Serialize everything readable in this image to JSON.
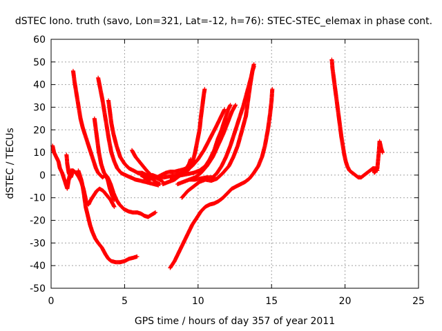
{
  "chart_data": {
    "type": "scatter",
    "title": "dSTEC Iono. truth (savo, Lon=321, Lat=-12, h=76): STEC-STEC_elemax in phase cont.",
    "xlabel": "GPS time / hours of day 357 of year 2011",
    "ylabel": "dSTEC  / TECUs",
    "xlim": [
      0,
      25
    ],
    "ylim": [
      -50,
      60
    ],
    "xticks": [
      0,
      5,
      10,
      15,
      20,
      25
    ],
    "yticks": [
      -50,
      -40,
      -30,
      -20,
      -10,
      0,
      10,
      20,
      30,
      40,
      50,
      60
    ],
    "xtick_labels": [
      "0",
      "5",
      "10",
      "15",
      "20",
      "25"
    ],
    "ytick_labels": [
      "-50",
      "-40",
      "-30",
      "-20",
      "-10",
      "0",
      "10",
      "20",
      "30",
      "40",
      "50",
      "60"
    ],
    "grid": true,
    "marker": "+",
    "marker_color": "#ff0000",
    "series": [
      {
        "points": [
          [
            0.1,
            13
          ],
          [
            0.2,
            10
          ],
          [
            0.35,
            8
          ],
          [
            0.5,
            6
          ],
          [
            0.6,
            3
          ],
          [
            0.75,
            1
          ],
          [
            0.9,
            -2
          ],
          [
            1.0,
            -4
          ],
          [
            1.1,
            -6
          ],
          [
            1.2,
            -2
          ],
          [
            1.35,
            2
          ],
          [
            1.5,
            2
          ]
        ]
      },
      {
        "points": [
          [
            1.05,
            9
          ],
          [
            1.1,
            5
          ],
          [
            1.2,
            1
          ],
          [
            1.35,
            -1
          ],
          [
            1.5,
            2
          ],
          [
            1.7,
            1
          ],
          [
            1.9,
            -1
          ],
          [
            2.05,
            -3
          ],
          [
            2.2,
            -6
          ],
          [
            2.3,
            -9
          ],
          [
            2.4,
            -12
          ],
          [
            2.55,
            -13
          ],
          [
            2.7,
            -11
          ],
          [
            2.9,
            -9
          ],
          [
            3.1,
            -7
          ],
          [
            3.3,
            -6
          ],
          [
            3.55,
            -7
          ],
          [
            3.8,
            -9
          ],
          [
            4.05,
            -11
          ],
          [
            4.3,
            -14
          ]
        ]
      },
      {
        "points": [
          [
            1.5,
            46
          ],
          [
            1.6,
            41
          ],
          [
            1.75,
            35
          ],
          [
            1.9,
            29
          ],
          [
            2.0,
            25
          ],
          [
            2.15,
            21
          ],
          [
            2.3,
            18
          ],
          [
            2.45,
            15
          ],
          [
            2.6,
            12
          ],
          [
            2.75,
            9
          ],
          [
            2.9,
            6
          ],
          [
            3.05,
            3
          ],
          [
            3.2,
            1
          ],
          [
            3.35,
            0
          ],
          [
            3.5,
            -1
          ],
          [
            3.7,
            0
          ],
          [
            3.85,
            -2
          ],
          [
            4.0,
            -6
          ],
          [
            4.15,
            -9
          ],
          [
            4.3,
            -11
          ]
        ]
      },
      {
        "points": [
          [
            1.85,
            2
          ],
          [
            1.95,
            0
          ],
          [
            2.05,
            -2
          ],
          [
            2.15,
            -5
          ],
          [
            2.25,
            -9
          ],
          [
            2.35,
            -14
          ],
          [
            2.5,
            -18
          ],
          [
            2.65,
            -22
          ],
          [
            2.8,
            -25
          ],
          [
            3.0,
            -28
          ],
          [
            3.2,
            -30
          ],
          [
            3.45,
            -32
          ],
          [
            3.7,
            -35
          ],
          [
            3.9,
            -37
          ],
          [
            4.1,
            -38
          ],
          [
            4.4,
            -38.5
          ],
          [
            4.7,
            -38.5
          ],
          [
            5.0,
            -38
          ],
          [
            5.3,
            -37
          ],
          [
            5.6,
            -36.5
          ],
          [
            5.85,
            -36
          ]
        ]
      },
      {
        "points": [
          [
            3.2,
            43
          ],
          [
            3.35,
            38
          ],
          [
            3.5,
            33
          ],
          [
            3.65,
            27
          ],
          [
            3.8,
            21
          ],
          [
            3.95,
            15
          ],
          [
            4.1,
            10
          ],
          [
            4.3,
            6
          ],
          [
            4.5,
            3
          ],
          [
            4.75,
            1
          ],
          [
            5.05,
            0
          ],
          [
            5.4,
            -1
          ],
          [
            5.75,
            -2
          ],
          [
            6.1,
            -2.5
          ],
          [
            6.4,
            -3
          ],
          [
            6.7,
            -3.5
          ],
          [
            7.0,
            -4
          ],
          [
            7.3,
            -4.5
          ]
        ]
      },
      {
        "points": [
          [
            3.9,
            33
          ],
          [
            4.0,
            28
          ],
          [
            4.1,
            23
          ],
          [
            4.25,
            18
          ],
          [
            4.45,
            13
          ],
          [
            4.7,
            8
          ],
          [
            5.0,
            5
          ],
          [
            5.3,
            3
          ],
          [
            5.6,
            2
          ],
          [
            5.9,
            1
          ],
          [
            6.2,
            1
          ],
          [
            6.5,
            0
          ],
          [
            6.8,
            -1
          ],
          [
            7.1,
            -3
          ],
          [
            7.4,
            -4
          ]
        ]
      },
      {
        "points": [
          [
            2.95,
            25
          ],
          [
            3.05,
            20
          ],
          [
            3.15,
            15
          ],
          [
            3.25,
            10
          ],
          [
            3.4,
            5
          ],
          [
            3.6,
            1
          ],
          [
            3.85,
            -1
          ],
          [
            4.05,
            -4
          ],
          [
            4.25,
            -8
          ],
          [
            4.45,
            -11
          ],
          [
            4.65,
            -13
          ],
          [
            4.95,
            -15
          ],
          [
            5.25,
            -16
          ],
          [
            5.55,
            -16.5
          ],
          [
            5.85,
            -16.5
          ],
          [
            6.1,
            -17
          ],
          [
            6.35,
            -18
          ],
          [
            6.6,
            -18.5
          ],
          [
            6.85,
            -17.5
          ],
          [
            7.1,
            -16.5
          ]
        ]
      },
      {
        "points": [
          [
            5.5,
            11
          ],
          [
            5.75,
            8
          ],
          [
            6.0,
            6
          ],
          [
            6.25,
            4
          ],
          [
            6.5,
            2
          ],
          [
            6.8,
            0
          ],
          [
            7.1,
            -1
          ],
          [
            7.4,
            -2
          ],
          [
            7.6,
            -3
          ]
        ]
      },
      {
        "points": [
          [
            6.3,
            -1
          ],
          [
            6.6,
            -2
          ],
          [
            6.9,
            -1.5
          ],
          [
            7.2,
            -1
          ],
          [
            7.5,
            0
          ],
          [
            7.8,
            1
          ],
          [
            8.1,
            1.5
          ],
          [
            8.4,
            1.5
          ],
          [
            8.7,
            2
          ],
          [
            9.0,
            2.5
          ],
          [
            9.2,
            3
          ],
          [
            9.4,
            5
          ],
          [
            9.5,
            7
          ]
        ]
      },
      {
        "points": [
          [
            6.1,
            0
          ],
          [
            6.5,
            -0.5
          ],
          [
            6.9,
            0
          ],
          [
            7.3,
            -1
          ],
          [
            7.7,
            -1
          ],
          [
            8.1,
            -0.5
          ],
          [
            8.5,
            0
          ],
          [
            8.9,
            1
          ],
          [
            9.3,
            2
          ],
          [
            9.6,
            5
          ],
          [
            9.8,
            10
          ],
          [
            9.95,
            15
          ],
          [
            10.1,
            20
          ],
          [
            10.2,
            26
          ],
          [
            10.3,
            31
          ],
          [
            10.4,
            36
          ],
          [
            10.45,
            38
          ]
        ]
      },
      {
        "points": [
          [
            8.1,
            -1
          ],
          [
            8.5,
            -0.5
          ],
          [
            8.9,
            0
          ],
          [
            9.3,
            0.5
          ],
          [
            9.7,
            1
          ],
          [
            10.1,
            2
          ],
          [
            10.5,
            4
          ],
          [
            10.8,
            7
          ],
          [
            11.1,
            11
          ],
          [
            11.35,
            16
          ],
          [
            11.6,
            20
          ],
          [
            11.85,
            25
          ],
          [
            12.05,
            29
          ],
          [
            12.2,
            31
          ]
        ]
      },
      {
        "points": [
          [
            8.6,
            -4
          ],
          [
            9.0,
            -3
          ],
          [
            9.4,
            -2
          ],
          [
            9.8,
            -1
          ],
          [
            10.2,
            1
          ],
          [
            10.6,
            4
          ],
          [
            11.0,
            8
          ],
          [
            11.35,
            13
          ],
          [
            11.7,
            18
          ],
          [
            12.0,
            23
          ],
          [
            12.3,
            28
          ],
          [
            12.55,
            31
          ]
        ]
      },
      {
        "points": [
          [
            7.6,
            -4
          ],
          [
            8.0,
            -3
          ],
          [
            8.4,
            -2
          ],
          [
            8.8,
            0
          ],
          [
            9.2,
            2
          ],
          [
            9.6,
            4
          ],
          [
            10.0,
            7
          ],
          [
            10.4,
            11
          ],
          [
            10.8,
            16
          ],
          [
            11.2,
            21
          ],
          [
            11.5,
            25
          ],
          [
            11.8,
            29
          ]
        ]
      },
      {
        "points": [
          [
            9.4,
            -2
          ],
          [
            9.8,
            -2
          ],
          [
            10.2,
            -1.5
          ],
          [
            10.6,
            -1
          ],
          [
            11.0,
            -1
          ],
          [
            11.3,
            1
          ],
          [
            11.6,
            4
          ],
          [
            11.9,
            8
          ],
          [
            12.2,
            13
          ],
          [
            12.5,
            19
          ],
          [
            12.8,
            25
          ],
          [
            13.1,
            31
          ],
          [
            13.35,
            37
          ],
          [
            13.6,
            43
          ],
          [
            13.8,
            49
          ]
        ]
      },
      {
        "points": [
          [
            8.9,
            -10
          ],
          [
            9.3,
            -7
          ],
          [
            9.7,
            -5
          ],
          [
            10.1,
            -3
          ],
          [
            10.5,
            -2
          ],
          [
            10.9,
            -2.5
          ],
          [
            11.3,
            -1.5
          ],
          [
            11.7,
            1
          ],
          [
            12.1,
            4
          ],
          [
            12.4,
            8
          ],
          [
            12.7,
            13
          ],
          [
            13.0,
            20
          ],
          [
            13.25,
            26
          ],
          [
            13.4,
            33
          ],
          [
            13.55,
            40
          ],
          [
            13.7,
            46
          ],
          [
            13.8,
            48
          ]
        ]
      },
      {
        "points": [
          [
            8.1,
            -41
          ],
          [
            8.4,
            -38
          ],
          [
            8.7,
            -34
          ],
          [
            9.0,
            -30
          ],
          [
            9.3,
            -26
          ],
          [
            9.6,
            -22
          ],
          [
            9.9,
            -19
          ],
          [
            10.2,
            -16
          ],
          [
            10.5,
            -14
          ],
          [
            10.8,
            -13
          ],
          [
            11.1,
            -12.5
          ],
          [
            11.4,
            -11.5
          ],
          [
            11.7,
            -10
          ],
          [
            12.0,
            -8
          ],
          [
            12.3,
            -6
          ],
          [
            12.6,
            -5
          ],
          [
            12.9,
            -4
          ],
          [
            13.2,
            -3
          ],
          [
            13.5,
            -1.5
          ],
          [
            13.8,
            1
          ],
          [
            14.1,
            4
          ],
          [
            14.35,
            8
          ],
          [
            14.55,
            13
          ],
          [
            14.75,
            20
          ],
          [
            14.9,
            27
          ],
          [
            15.0,
            33
          ],
          [
            15.05,
            38
          ]
        ]
      },
      {
        "points": [
          [
            19.1,
            51
          ],
          [
            19.15,
            47
          ],
          [
            19.25,
            42
          ],
          [
            19.35,
            37
          ],
          [
            19.45,
            32
          ],
          [
            19.55,
            27
          ],
          [
            19.65,
            22
          ],
          [
            19.75,
            17
          ],
          [
            19.85,
            13
          ],
          [
            19.95,
            9
          ],
          [
            20.05,
            6
          ],
          [
            20.15,
            4
          ],
          [
            20.3,
            2
          ],
          [
            20.5,
            1
          ],
          [
            20.7,
            0
          ],
          [
            20.9,
            -1
          ],
          [
            21.1,
            -1
          ],
          [
            21.3,
            0
          ],
          [
            21.5,
            1
          ],
          [
            21.7,
            2
          ],
          [
            21.9,
            3
          ],
          [
            22.05,
            3
          ],
          [
            22.2,
            2
          ]
        ]
      },
      {
        "points": [
          [
            21.9,
            3
          ],
          [
            22.0,
            1
          ],
          [
            22.1,
            2
          ],
          [
            22.2,
            3
          ],
          [
            22.3,
            10
          ],
          [
            22.35,
            15
          ],
          [
            22.45,
            12
          ],
          [
            22.55,
            10
          ]
        ]
      }
    ]
  }
}
